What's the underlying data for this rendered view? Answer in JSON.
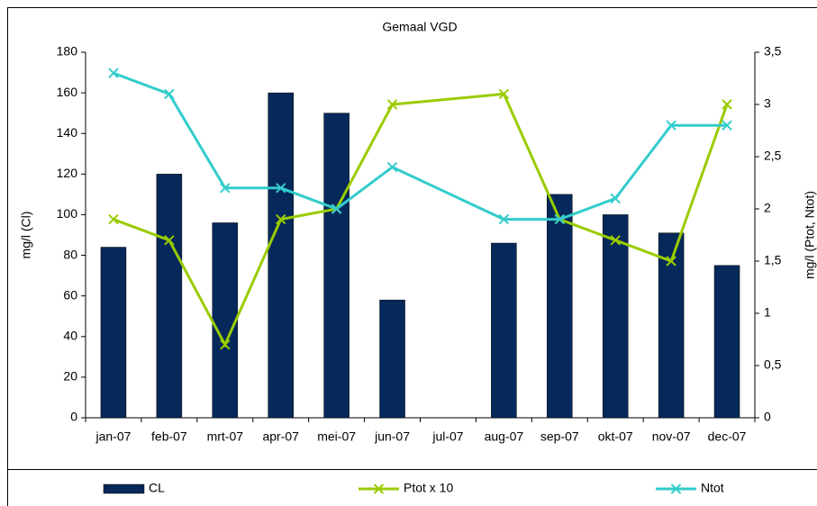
{
  "chart_data": {
    "type": "bar_line",
    "title": "Gemaal VGD",
    "categories": [
      "jan-07",
      "feb-07",
      "mrt-07",
      "apr-07",
      "mei-07",
      "jun-07",
      "jul-07",
      "aug-07",
      "sep-07",
      "okt-07",
      "nov-07",
      "dec-07"
    ],
    "series": [
      {
        "name": "CL",
        "type": "bar",
        "color": "#06285a",
        "values": [
          84,
          120,
          96,
          160,
          150,
          58,
          null,
          86,
          110,
          100,
          91,
          75
        ]
      },
      {
        "name": "Ptot x 10",
        "type": "line",
        "axis": "y2",
        "color": "#99cc00",
        "values": [
          1.9,
          1.7,
          0.7,
          1.9,
          2.0,
          3.0,
          null,
          3.1,
          1.9,
          1.7,
          1.5,
          3.0
        ]
      },
      {
        "name": "Ntot",
        "type": "line",
        "axis": "y2",
        "color": "#33cccc",
        "values": [
          3.3,
          3.1,
          2.2,
          2.2,
          2.0,
          2.4,
          null,
          1.9,
          1.9,
          2.1,
          2.8,
          2.8
        ]
      }
    ],
    "ylabel": "mg/l (Cl)",
    "y2label": "mg/l (Ptot, Ntot)",
    "ylim": [
      0,
      180
    ],
    "yticks": [
      0,
      20,
      40,
      60,
      80,
      100,
      120,
      140,
      160,
      180
    ],
    "y2lim": [
      0,
      3.5
    ],
    "y2ticks": [
      0,
      {
        "value": 0.5,
        "label": "0,5"
      },
      1,
      {
        "value": 1.5,
        "label": "1,5"
      },
      2,
      {
        "value": 2.5,
        "label": "2,5"
      },
      3,
      {
        "value": 3.5,
        "label": "3,5"
      }
    ],
    "connect_gaps": true,
    "grid": false,
    "legend": "bottom"
  }
}
